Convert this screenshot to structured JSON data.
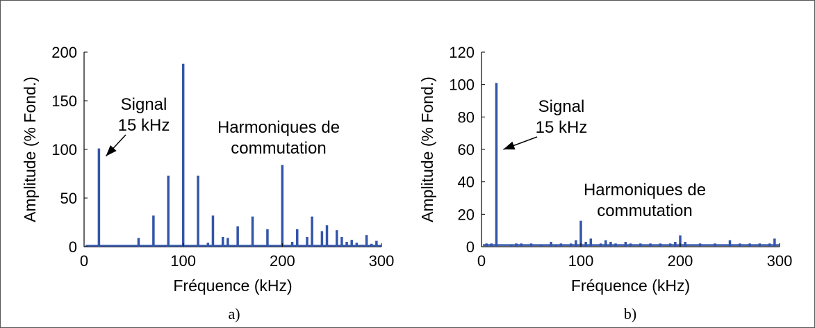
{
  "chart_data": [
    {
      "type": "bar",
      "id": "a",
      "caption": "a)",
      "xlabel": "Fréquence (kHz)",
      "ylabel": "Amplitude (% Fond.)",
      "xlim": [
        0,
        300
      ],
      "ylim": [
        0,
        200
      ],
      "xticks": [
        0,
        100,
        200,
        300
      ],
      "yticks": [
        0,
        50,
        100,
        150,
        200
      ],
      "grid": false,
      "color": "#3355aa",
      "baseline_level": 1,
      "x": [
        15,
        55,
        70,
        85,
        100,
        115,
        125,
        130,
        140,
        145,
        155,
        170,
        185,
        200,
        210,
        215,
        225,
        230,
        240,
        245,
        255,
        260,
        265,
        270,
        275,
        280,
        285,
        290,
        295
      ],
      "values": [
        101,
        9,
        32,
        73,
        188,
        73,
        4,
        32,
        10,
        9,
        21,
        31,
        18,
        84,
        5,
        18,
        10,
        31,
        16,
        22,
        17,
        10,
        5,
        7,
        4,
        2,
        12,
        3,
        6
      ],
      "annotations": [
        {
          "text": [
            "Signal",
            "15 kHz"
          ],
          "arrow_to": [
            15,
            93
          ]
        },
        {
          "text": [
            "Harmoniques de",
            "commutation"
          ]
        }
      ]
    },
    {
      "type": "bar",
      "id": "b",
      "caption": "b)",
      "xlabel": "Fréquence (kHz)",
      "ylabel": "Amplitude (% Fond.)",
      "xlim": [
        0,
        300
      ],
      "ylim": [
        0,
        120
      ],
      "xticks": [
        0,
        100,
        200,
        300
      ],
      "yticks": [
        0,
        20,
        40,
        60,
        80,
        100,
        120
      ],
      "grid": false,
      "color": "#3355aa",
      "baseline_level": 1,
      "x": [
        5,
        10,
        15,
        30,
        35,
        40,
        50,
        60,
        70,
        75,
        80,
        90,
        95,
        100,
        105,
        110,
        120,
        125,
        130,
        135,
        145,
        150,
        160,
        170,
        180,
        190,
        195,
        200,
        205,
        220,
        235,
        250,
        260,
        270,
        280,
        290,
        295
      ],
      "values": [
        2,
        2,
        101,
        1,
        2,
        2,
        2,
        1,
        3,
        1,
        2,
        2,
        4,
        16,
        3,
        5,
        2,
        4,
        3,
        2,
        3,
        2,
        2,
        2,
        2,
        2,
        3,
        7,
        3,
        2,
        2,
        4,
        2,
        2,
        2,
        2,
        5
      ],
      "annotations": [
        {
          "text": [
            "Signal",
            "15 kHz"
          ],
          "arrow_to": [
            15,
            60
          ]
        },
        {
          "text": [
            "Harmoniques de",
            "commutation"
          ]
        }
      ]
    }
  ]
}
